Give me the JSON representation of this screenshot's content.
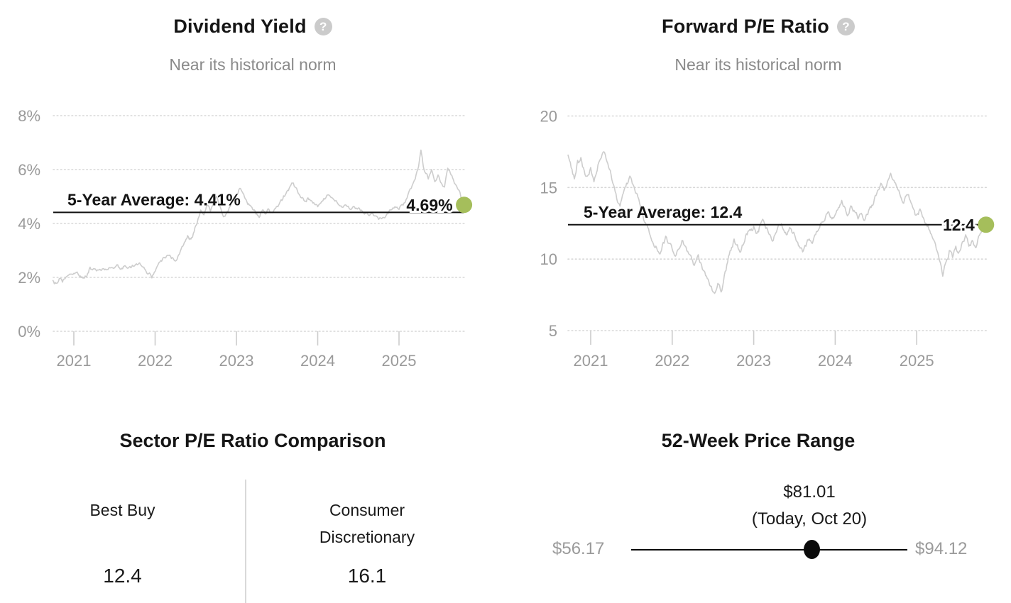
{
  "icons": {
    "help": "?"
  },
  "colors": {
    "accent_green": "#a5be5b",
    "series_line": "#cdcdcd",
    "grid": "#d7d7d7",
    "tick": "#cccccc",
    "axis_text": "#9a9a9a",
    "annotation_text": "#141414",
    "average_line": "#111111",
    "title_text": "#151515",
    "subtitle_text": "#8a8a8a"
  },
  "chart_data": [
    {
      "type": "line",
      "title": "Dividend Yield",
      "subtitle": "Near its historical norm",
      "help_icon": "question-mark-icon",
      "ylim": [
        0,
        8
      ],
      "xlim": [
        2020.74,
        2025.8
      ],
      "grid": "dotted-horizontal",
      "y_ticks": [
        {
          "value": 0,
          "label": "0%"
        },
        {
          "value": 2,
          "label": "2%"
        },
        {
          "value": 4,
          "label": "4%"
        },
        {
          "value": 6,
          "label": "6%"
        },
        {
          "value": 8,
          "label": "8%"
        }
      ],
      "x_ticks": [
        {
          "value": 2021,
          "label": "2021"
        },
        {
          "value": 2022,
          "label": "2022"
        },
        {
          "value": 2023,
          "label": "2023"
        },
        {
          "value": 2024,
          "label": "2024"
        },
        {
          "value": 2025,
          "label": "2025"
        }
      ],
      "average": {
        "value": 4.41,
        "label": "5-Year Average: 4.41%"
      },
      "current": {
        "value": 4.69,
        "label": "4.69%"
      },
      "series": [
        [
          2020.74,
          1.9
        ],
        [
          2020.78,
          1.78
        ],
        [
          2020.82,
          1.95
        ],
        [
          2020.86,
          1.82
        ],
        [
          2020.9,
          2.0
        ],
        [
          2020.95,
          2.12
        ],
        [
          2021.0,
          2.15
        ],
        [
          2021.04,
          2.2
        ],
        [
          2021.08,
          2.05
        ],
        [
          2021.12,
          1.98
        ],
        [
          2021.16,
          2.05
        ],
        [
          2021.2,
          2.38
        ],
        [
          2021.24,
          2.32
        ],
        [
          2021.28,
          2.24
        ],
        [
          2021.32,
          2.3
        ],
        [
          2021.36,
          2.32
        ],
        [
          2021.4,
          2.28
        ],
        [
          2021.44,
          2.36
        ],
        [
          2021.48,
          2.35
        ],
        [
          2021.52,
          2.42
        ],
        [
          2021.56,
          2.36
        ],
        [
          2021.6,
          2.32
        ],
        [
          2021.64,
          2.4
        ],
        [
          2021.68,
          2.38
        ],
        [
          2021.72,
          2.45
        ],
        [
          2021.76,
          2.48
        ],
        [
          2021.8,
          2.52
        ],
        [
          2021.84,
          2.4
        ],
        [
          2021.88,
          2.28
        ],
        [
          2021.92,
          2.14
        ],
        [
          2021.96,
          1.98
        ],
        [
          2022.0,
          2.22
        ],
        [
          2022.04,
          2.5
        ],
        [
          2022.08,
          2.6
        ],
        [
          2022.12,
          2.72
        ],
        [
          2022.16,
          2.82
        ],
        [
          2022.2,
          2.7
        ],
        [
          2022.24,
          2.62
        ],
        [
          2022.28,
          2.78
        ],
        [
          2022.32,
          3.05
        ],
        [
          2022.36,
          3.3
        ],
        [
          2022.4,
          3.55
        ],
        [
          2022.44,
          3.42
        ],
        [
          2022.48,
          3.7
        ],
        [
          2022.52,
          4.05
        ],
        [
          2022.56,
          4.5
        ],
        [
          2022.6,
          4.32
        ],
        [
          2022.64,
          4.68
        ],
        [
          2022.68,
          4.45
        ],
        [
          2022.72,
          4.75
        ],
        [
          2022.76,
          5.0
        ],
        [
          2022.8,
          4.62
        ],
        [
          2022.84,
          4.25
        ],
        [
          2022.88,
          4.4
        ],
        [
          2022.92,
          4.62
        ],
        [
          2022.96,
          4.85
        ],
        [
          2023.0,
          5.05
        ],
        [
          2023.04,
          5.3
        ],
        [
          2023.08,
          5.12
        ],
        [
          2023.12,
          4.88
        ],
        [
          2023.16,
          4.68
        ],
        [
          2023.2,
          4.52
        ],
        [
          2023.24,
          4.35
        ],
        [
          2023.28,
          4.22
        ],
        [
          2023.32,
          4.5
        ],
        [
          2023.36,
          4.35
        ],
        [
          2023.4,
          4.52
        ],
        [
          2023.44,
          4.4
        ],
        [
          2023.48,
          4.55
        ],
        [
          2023.52,
          4.68
        ],
        [
          2023.56,
          4.85
        ],
        [
          2023.6,
          5.05
        ],
        [
          2023.64,
          5.22
        ],
        [
          2023.68,
          5.5
        ],
        [
          2023.72,
          5.35
        ],
        [
          2023.76,
          5.12
        ],
        [
          2023.8,
          4.95
        ],
        [
          2023.84,
          4.82
        ],
        [
          2023.88,
          4.95
        ],
        [
          2023.92,
          4.85
        ],
        [
          2023.96,
          4.72
        ],
        [
          2024.0,
          4.62
        ],
        [
          2024.05,
          4.82
        ],
        [
          2024.1,
          4.95
        ],
        [
          2024.15,
          5.02
        ],
        [
          2024.2,
          4.88
        ],
        [
          2024.25,
          4.72
        ],
        [
          2024.3,
          4.6
        ],
        [
          2024.35,
          4.68
        ],
        [
          2024.4,
          4.52
        ],
        [
          2024.45,
          4.62
        ],
        [
          2024.5,
          4.58
        ],
        [
          2024.55,
          4.45
        ],
        [
          2024.6,
          4.4
        ],
        [
          2024.65,
          4.35
        ],
        [
          2024.7,
          4.28
        ],
        [
          2024.75,
          4.15
        ],
        [
          2024.8,
          4.22
        ],
        [
          2024.85,
          4.35
        ],
        [
          2024.9,
          4.5
        ],
        [
          2024.95,
          4.62
        ],
        [
          2025.0,
          4.52
        ],
        [
          2025.05,
          4.68
        ],
        [
          2025.1,
          4.95
        ],
        [
          2025.15,
          5.3
        ],
        [
          2025.2,
          5.65
        ],
        [
          2025.24,
          6.1
        ],
        [
          2025.27,
          6.72
        ],
        [
          2025.3,
          6.1
        ],
        [
          2025.33,
          5.85
        ],
        [
          2025.36,
          5.65
        ],
        [
          2025.4,
          6.0
        ],
        [
          2025.44,
          5.55
        ],
        [
          2025.48,
          5.8
        ],
        [
          2025.52,
          5.5
        ],
        [
          2025.56,
          5.35
        ],
        [
          2025.6,
          6.05
        ],
        [
          2025.64,
          5.8
        ],
        [
          2025.68,
          5.5
        ],
        [
          2025.72,
          5.3
        ],
        [
          2025.76,
          5.0
        ],
        [
          2025.8,
          4.69
        ]
      ]
    },
    {
      "type": "line",
      "title": "Forward P/E Ratio",
      "subtitle": "Near its historical norm",
      "help_icon": "question-mark-icon",
      "ylim": [
        5,
        20
      ],
      "xlim": [
        2020.72,
        2025.85
      ],
      "grid": "dotted-horizontal",
      "y_ticks": [
        {
          "value": 5,
          "label": "5"
        },
        {
          "value": 10,
          "label": "10"
        },
        {
          "value": 15,
          "label": "15"
        },
        {
          "value": 20,
          "label": "20"
        }
      ],
      "x_ticks": [
        {
          "value": 2021,
          "label": "2021"
        },
        {
          "value": 2022,
          "label": "2022"
        },
        {
          "value": 2023,
          "label": "2023"
        },
        {
          "value": 2024,
          "label": "2024"
        },
        {
          "value": 2025,
          "label": "2025"
        }
      ],
      "average": {
        "value": 12.4,
        "label": "5-Year Average: 12.4"
      },
      "current": {
        "value": 12.4,
        "label": "12.4"
      },
      "series": [
        [
          2020.72,
          17.3
        ],
        [
          2020.76,
          16.4
        ],
        [
          2020.8,
          15.6
        ],
        [
          2020.84,
          16.9
        ],
        [
          2020.88,
          17.1
        ],
        [
          2020.92,
          16.2
        ],
        [
          2020.96,
          15.8
        ],
        [
          2021.0,
          16.4
        ],
        [
          2021.04,
          15.4
        ],
        [
          2021.08,
          16.2
        ],
        [
          2021.12,
          17.0
        ],
        [
          2021.16,
          17.5
        ],
        [
          2021.2,
          16.8
        ],
        [
          2021.24,
          16.2
        ],
        [
          2021.28,
          15.2
        ],
        [
          2021.32,
          14.2
        ],
        [
          2021.36,
          13.7
        ],
        [
          2021.4,
          14.6
        ],
        [
          2021.44,
          15.3
        ],
        [
          2021.48,
          15.8
        ],
        [
          2021.52,
          15.2
        ],
        [
          2021.56,
          14.6
        ],
        [
          2021.6,
          13.9
        ],
        [
          2021.64,
          13.1
        ],
        [
          2021.68,
          12.4
        ],
        [
          2021.72,
          11.8
        ],
        [
          2021.76,
          11.2
        ],
        [
          2021.8,
          10.9
        ],
        [
          2021.84,
          10.4
        ],
        [
          2021.88,
          11.0
        ],
        [
          2021.92,
          11.6
        ],
        [
          2021.96,
          11.1
        ],
        [
          2022.0,
          10.7
        ],
        [
          2022.04,
          10.2
        ],
        [
          2022.08,
          10.7
        ],
        [
          2022.12,
          11.3
        ],
        [
          2022.16,
          10.9
        ],
        [
          2022.2,
          10.4
        ],
        [
          2022.24,
          10.0
        ],
        [
          2022.28,
          9.7
        ],
        [
          2022.32,
          10.3
        ],
        [
          2022.36,
          9.6
        ],
        [
          2022.4,
          9.1
        ],
        [
          2022.44,
          8.6
        ],
        [
          2022.48,
          8.1
        ],
        [
          2022.52,
          7.6
        ],
        [
          2022.56,
          8.3
        ],
        [
          2022.6,
          7.7
        ],
        [
          2022.64,
          8.9
        ],
        [
          2022.68,
          9.8
        ],
        [
          2022.72,
          10.6
        ],
        [
          2022.76,
          11.4
        ],
        [
          2022.8,
          11.0
        ],
        [
          2022.84,
          10.5
        ],
        [
          2022.88,
          11.1
        ],
        [
          2022.92,
          11.7
        ],
        [
          2022.96,
          12.0
        ],
        [
          2023.0,
          12.3
        ],
        [
          2023.04,
          11.8
        ],
        [
          2023.08,
          12.4
        ],
        [
          2023.12,
          12.7
        ],
        [
          2023.16,
          12.2
        ],
        [
          2023.2,
          11.7
        ],
        [
          2023.24,
          11.3
        ],
        [
          2023.28,
          11.9
        ],
        [
          2023.32,
          12.4
        ],
        [
          2023.36,
          12.1
        ],
        [
          2023.4,
          11.7
        ],
        [
          2023.44,
          12.2
        ],
        [
          2023.48,
          11.8
        ],
        [
          2023.52,
          11.3
        ],
        [
          2023.56,
          10.9
        ],
        [
          2023.6,
          10.5
        ],
        [
          2023.64,
          10.9
        ],
        [
          2023.68,
          11.4
        ],
        [
          2023.72,
          11.1
        ],
        [
          2023.76,
          11.7
        ],
        [
          2023.8,
          12.1
        ],
        [
          2023.84,
          12.6
        ],
        [
          2023.88,
          12.9
        ],
        [
          2023.92,
          13.3
        ],
        [
          2023.96,
          12.8
        ],
        [
          2024.0,
          13.1
        ],
        [
          2024.04,
          13.6
        ],
        [
          2024.08,
          14.1
        ],
        [
          2024.12,
          13.6
        ],
        [
          2024.16,
          13.1
        ],
        [
          2024.2,
          13.7
        ],
        [
          2024.24,
          13.3
        ],
        [
          2024.28,
          12.8
        ],
        [
          2024.32,
          13.2
        ],
        [
          2024.36,
          12.7
        ],
        [
          2024.4,
          13.1
        ],
        [
          2024.44,
          13.6
        ],
        [
          2024.48,
          14.2
        ],
        [
          2024.52,
          14.8
        ],
        [
          2024.56,
          15.3
        ],
        [
          2024.6,
          14.8
        ],
        [
          2024.64,
          15.4
        ],
        [
          2024.68,
          16.0
        ],
        [
          2024.72,
          15.5
        ],
        [
          2024.76,
          15.0
        ],
        [
          2024.8,
          14.4
        ],
        [
          2024.84,
          13.9
        ],
        [
          2024.88,
          14.5
        ],
        [
          2024.92,
          14.1
        ],
        [
          2024.96,
          13.5
        ],
        [
          2025.0,
          13.1
        ],
        [
          2025.04,
          13.5
        ],
        [
          2025.08,
          12.9
        ],
        [
          2025.12,
          12.4
        ],
        [
          2025.16,
          12.0
        ],
        [
          2025.2,
          11.4
        ],
        [
          2025.24,
          10.7
        ],
        [
          2025.28,
          9.9
        ],
        [
          2025.32,
          8.8
        ],
        [
          2025.36,
          9.8
        ],
        [
          2025.4,
          10.6
        ],
        [
          2025.44,
          10.1
        ],
        [
          2025.48,
          10.9
        ],
        [
          2025.52,
          10.5
        ],
        [
          2025.56,
          11.2
        ],
        [
          2025.6,
          11.7
        ],
        [
          2025.64,
          10.9
        ],
        [
          2025.68,
          11.3
        ],
        [
          2025.72,
          10.8
        ],
        [
          2025.76,
          11.6
        ],
        [
          2025.8,
          12.1
        ],
        [
          2025.85,
          12.4
        ]
      ]
    },
    {
      "type": "table",
      "title": "Sector P/E Ratio Comparison",
      "columns": [
        {
          "label": "Best Buy",
          "value": "12.4"
        },
        {
          "label": "Consumer Discretionary",
          "value": "16.1"
        }
      ]
    },
    {
      "type": "range",
      "title": "52-Week Price Range",
      "low": 56.17,
      "high": 94.12,
      "current": 81.01,
      "low_label": "$56.17",
      "high_label": "$94.12",
      "current_label": "$81.01",
      "current_date_label": "(Today, Oct 20)"
    }
  ]
}
